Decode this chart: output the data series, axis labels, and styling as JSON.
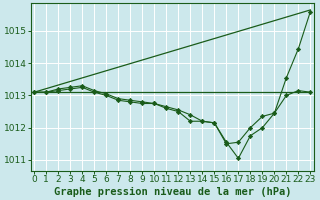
{
  "title": "Graphe pression niveau de la mer (hPa)",
  "background_color": "#cce8ec",
  "grid_color": "#b0d8dc",
  "line_color": "#1a5c1a",
  "xlim": [
    -0.3,
    23.3
  ],
  "ylim": [
    1010.65,
    1015.85
  ],
  "yticks": [
    1011,
    1012,
    1013,
    1014,
    1015
  ],
  "xticks": [
    0,
    1,
    2,
    3,
    4,
    5,
    6,
    7,
    8,
    9,
    10,
    11,
    12,
    13,
    14,
    15,
    16,
    17,
    18,
    19,
    20,
    21,
    22,
    23
  ],
  "series": [
    {
      "x": [
        0,
        23
      ],
      "y": [
        1013.1,
        1013.1
      ],
      "markers": false
    },
    {
      "x": [
        0,
        23
      ],
      "y": [
        1013.1,
        1015.65
      ],
      "markers": false
    },
    {
      "x": [
        0,
        1,
        2,
        3,
        4,
        5,
        6,
        7,
        8,
        9,
        10,
        11,
        12,
        13,
        14,
        15,
        16,
        17,
        18,
        19,
        20,
        21,
        22,
        23
      ],
      "y": [
        1013.1,
        1013.1,
        1013.2,
        1013.25,
        1013.3,
        1013.15,
        1013.05,
        1012.9,
        1012.85,
        1012.8,
        1012.75,
        1012.65,
        1012.55,
        1012.4,
        1012.2,
        1012.15,
        1011.55,
        1011.05,
        1011.75,
        1012.0,
        1012.45,
        1013.55,
        1014.45,
        1015.6
      ],
      "markers": true
    },
    {
      "x": [
        0,
        1,
        2,
        3,
        4,
        5,
        6,
        7,
        8,
        9,
        10,
        11,
        12,
        13,
        14,
        15,
        16,
        17,
        18,
        19,
        20,
        21,
        22,
        23
      ],
      "y": [
        1013.1,
        1013.1,
        1013.15,
        1013.2,
        1013.25,
        1013.1,
        1013.0,
        1012.85,
        1012.8,
        1012.75,
        1012.75,
        1012.6,
        1012.5,
        1012.2,
        1012.2,
        1012.15,
        1011.5,
        1011.55,
        1012.0,
        1012.35,
        1012.45,
        1013.0,
        1013.15,
        1013.1
      ],
      "markers": true
    }
  ],
  "x_label_fontsize": 6.5,
  "y_label_fontsize": 6.5,
  "title_fontsize": 7.5
}
